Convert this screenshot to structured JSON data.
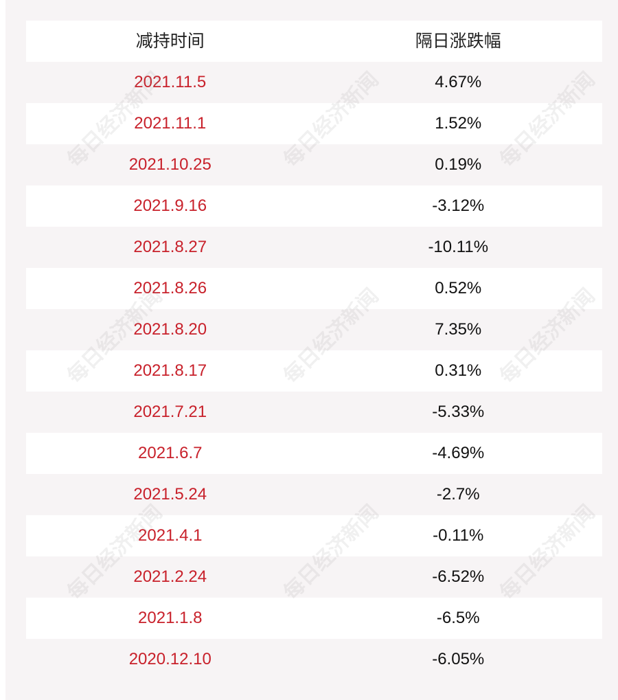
{
  "table": {
    "headers": [
      "减持时间",
      "隔日涨跌幅"
    ],
    "rows": [
      {
        "date": "2021.11.5",
        "change": "4.67%"
      },
      {
        "date": "2021.11.1",
        "change": "1.52%"
      },
      {
        "date": "2021.10.25",
        "change": "0.19%"
      },
      {
        "date": "2021.9.16",
        "change": "-3.12%"
      },
      {
        "date": "2021.8.27",
        "change": "-10.11%"
      },
      {
        "date": "2021.8.26",
        "change": "0.52%"
      },
      {
        "date": "2021.8.20",
        "change": "7.35%"
      },
      {
        "date": "2021.8.17",
        "change": "0.31%"
      },
      {
        "date": "2021.7.21",
        "change": "-5.33%"
      },
      {
        "date": "2021.6.7",
        "change": "-4.69%"
      },
      {
        "date": "2021.5.24",
        "change": "-2.7%"
      },
      {
        "date": "2021.4.1",
        "change": "-0.11%"
      },
      {
        "date": "2021.2.24",
        "change": "-6.52%"
      },
      {
        "date": "2021.1.8",
        "change": "-6.5%"
      },
      {
        "date": "2020.12.10",
        "change": "-6.05%"
      }
    ]
  },
  "watermark": "每日经济新闻",
  "colors": {
    "date_text": "#c8212b",
    "shade_row": "#f7f4f5"
  }
}
